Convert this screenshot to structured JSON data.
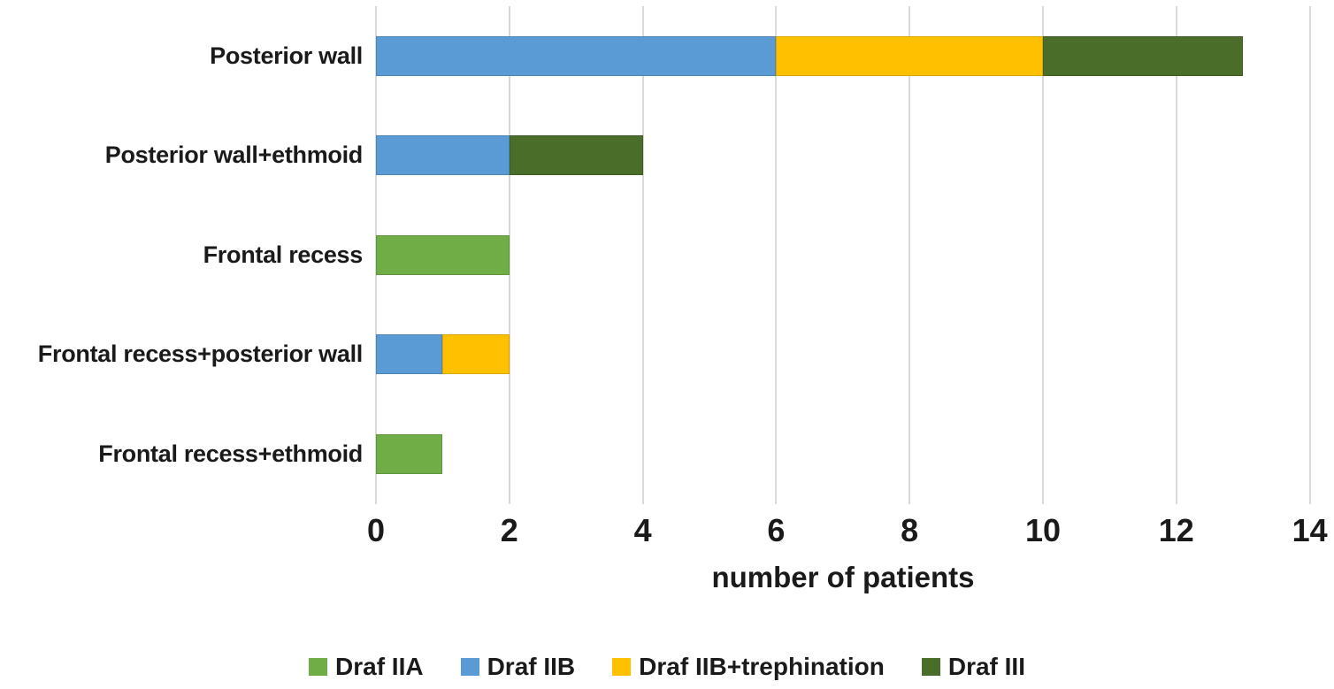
{
  "figure": {
    "background": "#ffffff",
    "text_color": "#1a1a1a",
    "gridline_color": "#d9d9d9"
  },
  "chart_data": {
    "type": "bar",
    "orientation": "horizontal",
    "stacked": true,
    "title": "",
    "xlabel": "number of patients",
    "xlim": [
      0,
      14
    ],
    "xticks": [
      0,
      2,
      4,
      6,
      8,
      10,
      12,
      14
    ],
    "grid": "vertical-gridlines",
    "legend_position": "bottom",
    "categories": [
      "Posterior wall",
      "Posterior wall+ethmoid",
      "Frontal recess",
      "Frontal recess+posterior wall",
      "Frontal recess+ethmoid"
    ],
    "series": [
      {
        "name": "Draf IIA",
        "color": "#70AD47",
        "values": [
          0,
          0,
          2,
          0,
          1
        ]
      },
      {
        "name": "Draf IIB",
        "color": "#5B9BD5",
        "values": [
          6,
          2,
          0,
          1,
          0
        ]
      },
      {
        "name": "Draf IIB+trephination",
        "color": "#FFC000",
        "values": [
          4,
          0,
          0,
          1,
          0
        ]
      },
      {
        "name": "Draf III",
        "color": "#4A6E29",
        "values": [
          3,
          2,
          0,
          0,
          0
        ]
      }
    ],
    "category_totals": [
      13,
      4,
      2,
      2,
      1
    ]
  }
}
